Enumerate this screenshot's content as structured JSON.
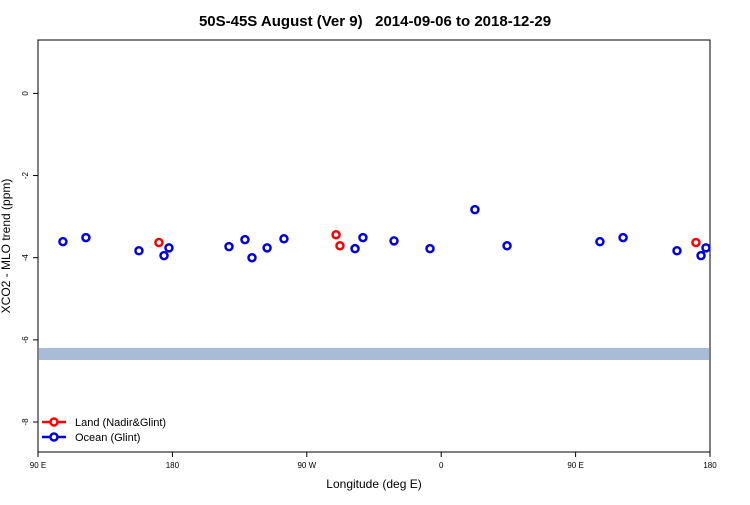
{
  "chart_data": {
    "type": "scatter",
    "title": "50S-45S August (Ver 9)   2014-09-06 to 2018-12-29",
    "x_label": "Longitude (deg E)",
    "y_label": "XCO2 - MLO trend (ppm)",
    "xlim": [
      90,
      540
    ],
    "xticks": [
      {
        "value": 90,
        "label": "90 E"
      },
      180,
      {
        "value": 270,
        "label": "90 W"
      },
      {
        "value": 360,
        "label": "0"
      },
      {
        "value": 450,
        "label": "90 E"
      },
      {
        "value": 540,
        "label": "180"
      }
    ],
    "ylim": [
      -8.73,
      1.3
    ],
    "yticks": [
      0,
      -2,
      -4,
      -6,
      -8
    ],
    "legend": "bottom-left",
    "series": [
      {
        "name": "Land (Nadir&Glint)",
        "color": "#ff0000",
        "x": [
          171.0,
          289.6,
          292.2,
          530.6
        ],
        "values": [
          -3.63,
          -3.44,
          -3.71,
          -3.63
        ]
      },
      {
        "name": "Ocean (Glint)",
        "color": "#0000dd",
        "x": [
          106.7,
          122.1,
          157.6,
          174.4,
          177.7,
          217.9,
          228.6,
          233.3,
          243.4,
          254.7,
          302.3,
          307.6,
          328.4,
          352.5,
          382.6,
          404.1,
          466.3,
          481.8,
          517.9,
          534.0,
          537.3
        ],
        "values": [
          -3.61,
          -3.51,
          -3.83,
          -3.95,
          -3.76,
          -3.73,
          -3.56,
          -4.0,
          -3.76,
          -3.54,
          -3.78,
          -3.51,
          -3.59,
          -3.78,
          -2.83,
          -3.71,
          -3.61,
          -3.51,
          -3.83,
          -3.95,
          -3.76
        ]
      }
    ]
  }
}
